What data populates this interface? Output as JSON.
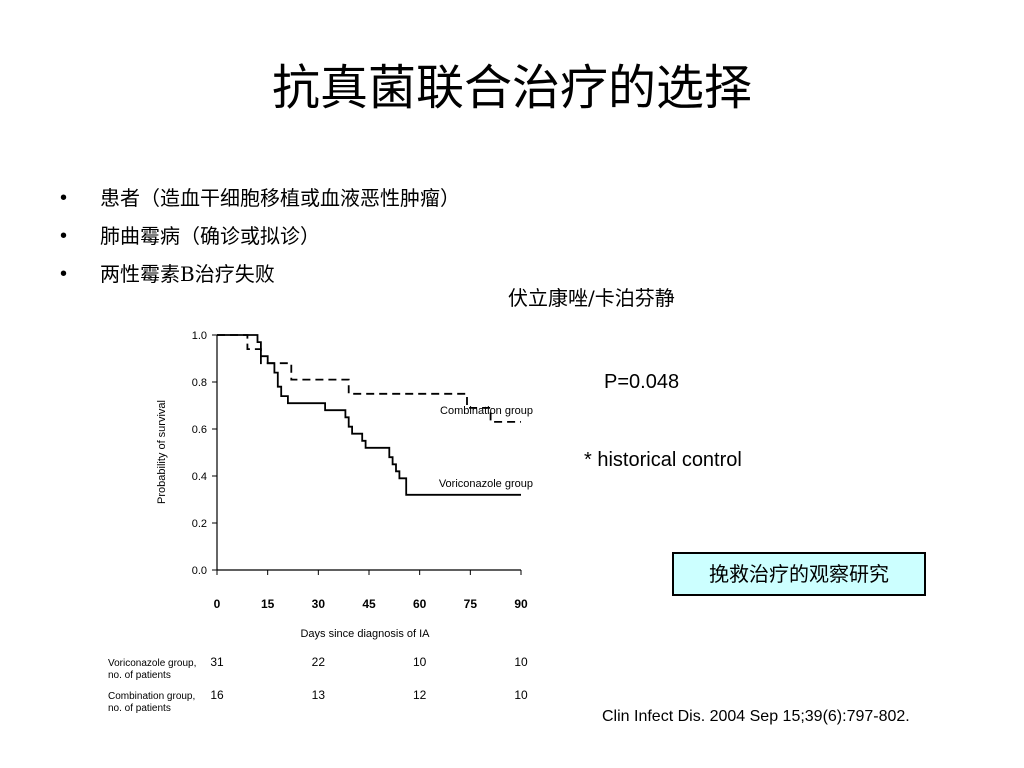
{
  "slide": {
    "title": "抗真菌联合治疗的选择",
    "bullets": [
      "患者（造血干细胞移植或血液恶性肿瘤）",
      "肺曲霉病（确诊或拟诊）",
      "两性霉素B治疗失败"
    ],
    "bullet_marker": "•",
    "drug_label": "伏立康唑/卡泊芬静",
    "p_value": "P=0.048",
    "historical_note": "* historical control",
    "boxed_note": "挽救治疗的观察研究",
    "citation": "Clin Infect Dis. 2004 Sep 15;39(6):797-802.",
    "colors": {
      "box_fill": "#ccffff"
    }
  },
  "chart_data": {
    "type": "line",
    "xlabel": "Days since diagnosis of IA",
    "ylabel": "Probability of survival",
    "xlim": [
      0,
      90
    ],
    "ylim": [
      0,
      1
    ],
    "x_ticks": [
      0,
      15,
      30,
      45,
      60,
      75,
      90
    ],
    "y_ticks": [
      "0.0",
      "0.2",
      "0.4",
      "0.6",
      "0.8",
      "1.0"
    ],
    "series": [
      {
        "name": "Combination group",
        "style": "dashed",
        "points": [
          [
            0,
            1.0
          ],
          [
            9,
            1.0
          ],
          [
            9,
            0.94
          ],
          [
            13,
            0.94
          ],
          [
            13,
            0.88
          ],
          [
            22,
            0.88
          ],
          [
            22,
            0.81
          ],
          [
            39,
            0.81
          ],
          [
            39,
            0.75
          ],
          [
            74,
            0.75
          ],
          [
            74,
            0.69
          ],
          [
            81,
            0.69
          ],
          [
            81,
            0.63
          ],
          [
            90,
            0.63
          ]
        ]
      },
      {
        "name": "Voriconazole group",
        "style": "solid",
        "points": [
          [
            0,
            1.0
          ],
          [
            12,
            1.0
          ],
          [
            12,
            0.97
          ],
          [
            13,
            0.97
          ],
          [
            13,
            0.91
          ],
          [
            15,
            0.91
          ],
          [
            15,
            0.88
          ],
          [
            17,
            0.88
          ],
          [
            17,
            0.84
          ],
          [
            18,
            0.84
          ],
          [
            18,
            0.78
          ],
          [
            19,
            0.78
          ],
          [
            19,
            0.74
          ],
          [
            21,
            0.74
          ],
          [
            21,
            0.71
          ],
          [
            32,
            0.71
          ],
          [
            32,
            0.68
          ],
          [
            38,
            0.68
          ],
          [
            38,
            0.65
          ],
          [
            39,
            0.65
          ],
          [
            39,
            0.61
          ],
          [
            40,
            0.61
          ],
          [
            40,
            0.58
          ],
          [
            43,
            0.58
          ],
          [
            43,
            0.55
          ],
          [
            44,
            0.55
          ],
          [
            44,
            0.52
          ],
          [
            51,
            0.52
          ],
          [
            51,
            0.48
          ],
          [
            52,
            0.48
          ],
          [
            52,
            0.45
          ],
          [
            53,
            0.45
          ],
          [
            53,
            0.42
          ],
          [
            54,
            0.42
          ],
          [
            54,
            0.39
          ],
          [
            56,
            0.39
          ],
          [
            56,
            0.32
          ],
          [
            90,
            0.32
          ]
        ]
      }
    ],
    "risk_table": [
      {
        "label_line1": "Voriconazole group,",
        "label_line2": "no. of patients",
        "values": [
          "31",
          "22",
          "10",
          "10"
        ],
        "days": [
          0,
          30,
          60,
          90
        ]
      },
      {
        "label_line1": "Combination group,",
        "label_line2": "no. of patients",
        "values": [
          "16",
          "13",
          "12",
          "10"
        ],
        "days": [
          0,
          30,
          60,
          90
        ]
      }
    ]
  }
}
